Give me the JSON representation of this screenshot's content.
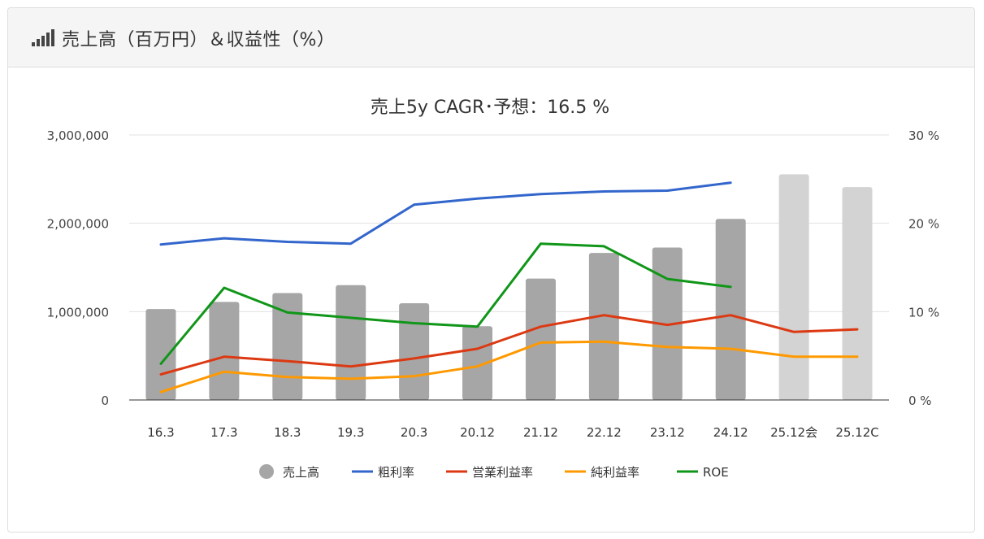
{
  "panel": {
    "title": "売上高（百万円）＆収益性（%）",
    "icon": "signal-bars-icon"
  },
  "chart_data": {
    "type": "bar",
    "title": "売上5y CAGR･予想：16.5 %",
    "categories": [
      "16.3",
      "17.3",
      "18.3",
      "19.3",
      "20.3",
      "20.12",
      "21.12",
      "22.12",
      "23.12",
      "24.12",
      "25.12会",
      "25.12C"
    ],
    "bar_series": {
      "name": "売上高",
      "values": [
        1030000,
        1110000,
        1210000,
        1300000,
        1095000,
        835000,
        1375000,
        1665000,
        1725000,
        2050000,
        2555000,
        2410000
      ],
      "forecast_from_index": 10,
      "color": "#a6a6a6",
      "forecast_color": "#d3d3d3"
    },
    "line_series": [
      {
        "name": "粗利率",
        "color": "#3366cc",
        "values": [
          17.6,
          18.3,
          17.9,
          17.7,
          22.1,
          22.8,
          23.3,
          23.6,
          23.7,
          24.6,
          null,
          null
        ]
      },
      {
        "name": "営業利益率",
        "color": "#dc3912",
        "values": [
          2.9,
          4.9,
          4.4,
          3.8,
          4.7,
          5.8,
          8.3,
          9.6,
          8.5,
          9.6,
          7.7,
          8.0
        ]
      },
      {
        "name": "純利益率",
        "color": "#ff9900",
        "values": [
          0.9,
          3.2,
          2.6,
          2.4,
          2.7,
          3.8,
          6.5,
          6.6,
          6.0,
          5.8,
          4.9,
          4.9
        ]
      },
      {
        "name": "ROE",
        "color": "#109618",
        "values": [
          4.1,
          12.7,
          9.9,
          9.3,
          8.7,
          8.3,
          17.7,
          17.4,
          13.7,
          12.8,
          null,
          null
        ]
      }
    ],
    "y_left": {
      "min": 0,
      "max": 3000000,
      "ticks": [
        "0",
        "1,000,000",
        "2,000,000",
        "3,000,000"
      ]
    },
    "y_right": {
      "min": 0,
      "max": 30,
      "ticks": [
        "0 %",
        "10 %",
        "20 %",
        "30 %"
      ]
    },
    "grid": true,
    "legend_position": "bottom"
  }
}
